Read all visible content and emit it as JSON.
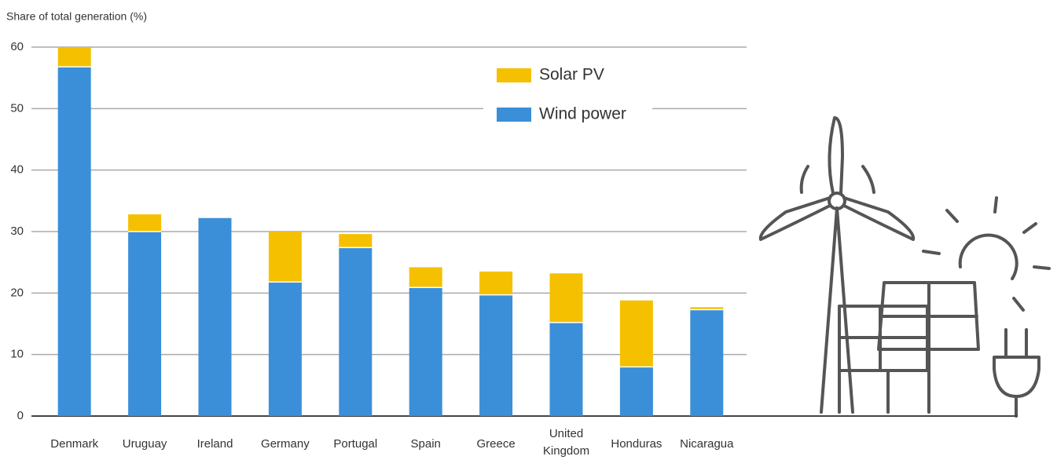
{
  "chart_data": {
    "type": "stacked_bar",
    "y_axis_label": "Share of total generation (%)",
    "categories": [
      "Denmark",
      "Uruguay",
      "Ireland",
      "Germany",
      "Portugal",
      "Spain",
      "Greece",
      "United Kingdom",
      "Honduras",
      "Nicaragua"
    ],
    "series": [
      {
        "name": "Wind power",
        "color": "#3a8fd8",
        "values": [
          56.8,
          30,
          32.2,
          21.8,
          27.4,
          20.9,
          19.7,
          15.2,
          8,
          17.3
        ]
      },
      {
        "name": "Solar PV",
        "color": "#f5c000",
        "values": [
          3.2,
          2.8,
          0,
          8.2,
          2.2,
          3.3,
          3.8,
          8,
          10.8,
          0.4
        ]
      }
    ],
    "ylim": [
      0,
      60
    ],
    "yticks": [
      0,
      10,
      20,
      30,
      40,
      50,
      60
    ],
    "grid": true,
    "legend": "top-right"
  }
}
